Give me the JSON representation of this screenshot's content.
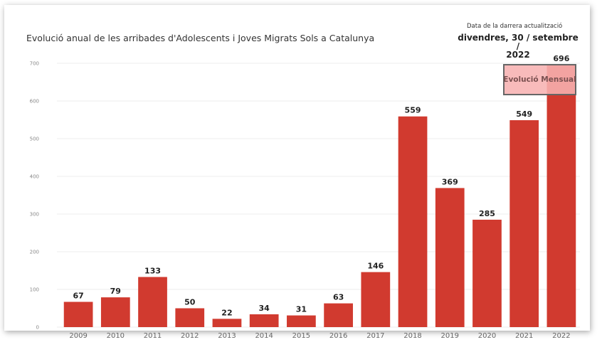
{
  "header": {
    "title": "Evolució anual de les arribades d'Adolescents i Joves Migrats Sols a Catalunya",
    "update_label": "Data de la darrera actualització",
    "update_date_line1": "divendres, 30 / setembre /",
    "update_date_line2": "2022"
  },
  "button": {
    "label": "Evolució Mensual"
  },
  "colors": {
    "bar": "#d13a2f",
    "grid": "#eeeeee",
    "button_fill": "#f7b2b2",
    "button_border": "#666666"
  },
  "chart_data": {
    "type": "bar",
    "title": "Evolució anual de les arribades d'Adolescents i Joves Migrats Sols a Catalunya",
    "categories": [
      "2009",
      "2010",
      "2011",
      "2012",
      "2013",
      "2014",
      "2015",
      "2016",
      "2017",
      "2018",
      "2019",
      "2020",
      "2021",
      "2022"
    ],
    "values": [
      67,
      79,
      133,
      50,
      22,
      34,
      31,
      63,
      146,
      559,
      369,
      285,
      549,
      696
    ],
    "yticks": [
      0,
      100,
      200,
      300,
      400,
      500,
      600,
      700
    ],
    "ylim": [
      0,
      700
    ],
    "grid": true,
    "xlabel": "",
    "ylabel": ""
  }
}
